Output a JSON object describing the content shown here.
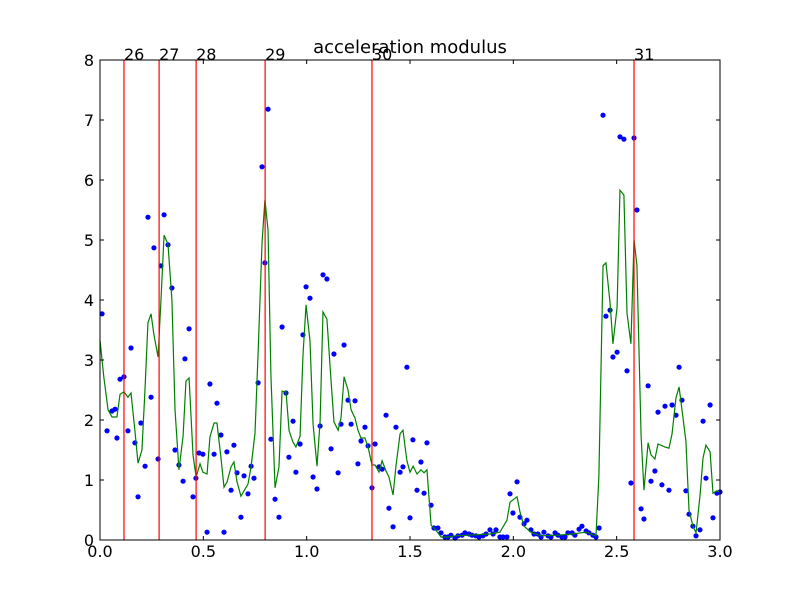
{
  "chart_data": {
    "type": "scatter",
    "title": "acceleration modulus",
    "xlim": [
      0,
      3
    ],
    "ylim": [
      0,
      8
    ],
    "xticks": [
      {
        "value": 0,
        "label": "0.0"
      },
      {
        "value": 0.5,
        "label": "0.5"
      },
      {
        "value": 1,
        "label": "1.0"
      },
      {
        "value": 1.5,
        "label": "1.5"
      },
      {
        "value": 2,
        "label": "2.0"
      },
      {
        "value": 2.5,
        "label": "2.5"
      },
      {
        "value": 3,
        "label": "3.0"
      }
    ],
    "yticks": [
      0,
      1,
      2,
      3,
      4,
      5,
      6,
      7,
      8
    ],
    "grid": false,
    "vlines": {
      "color": "#ff0000",
      "lines": [
        {
          "x": 0.116,
          "label": "26"
        },
        {
          "x": 0.286,
          "label": "27"
        },
        {
          "x": 0.465,
          "label": "28"
        },
        {
          "x": 0.799,
          "label": "29"
        },
        {
          "x": 1.316,
          "label": "30"
        },
        {
          "x": 2.584,
          "label": "31"
        }
      ]
    },
    "series": [
      {
        "style": "marker",
        "color": "#0000ff",
        "x": [
          0.01,
          0.034,
          0.058,
          0.073,
          0.082,
          0.097,
          0.116,
          0.135,
          0.15,
          0.169,
          0.184,
          0.198,
          0.218,
          0.232,
          0.247,
          0.261,
          0.281,
          0.295,
          0.31,
          0.329,
          0.348,
          0.363,
          0.382,
          0.402,
          0.411,
          0.431,
          0.45,
          0.464,
          0.479,
          0.498,
          0.518,
          0.532,
          0.552,
          0.566,
          0.585,
          0.6,
          0.614,
          0.634,
          0.648,
          0.663,
          0.682,
          0.697,
          0.716,
          0.731,
          0.745,
          0.765,
          0.784,
          0.798,
          0.813,
          0.827,
          0.847,
          0.866,
          0.881,
          0.9,
          0.914,
          0.934,
          0.948,
          0.968,
          0.982,
          0.997,
          1.016,
          1.031,
          1.05,
          1.065,
          1.079,
          1.098,
          1.118,
          1.132,
          1.152,
          1.166,
          1.181,
          1.2,
          1.215,
          1.234,
          1.248,
          1.263,
          1.282,
          1.297,
          1.316,
          1.331,
          1.35,
          1.365,
          1.384,
          1.398,
          1.418,
          1.432,
          1.452,
          1.466,
          1.485,
          1.5,
          1.514,
          1.534,
          1.553,
          1.568,
          1.582,
          1.602,
          1.616,
          1.635,
          1.65,
          1.669,
          1.684,
          1.698,
          1.718,
          1.732,
          1.752,
          1.766,
          1.786,
          1.8,
          1.819,
          1.834,
          1.853,
          1.868,
          1.887,
          1.902,
          1.916,
          1.935,
          1.95,
          1.969,
          1.984,
          1.998,
          2.018,
          2.032,
          2.052,
          2.066,
          2.085,
          2.1,
          2.119,
          2.134,
          2.148,
          2.168,
          2.182,
          2.202,
          2.216,
          2.235,
          2.25,
          2.264,
          2.284,
          2.298,
          2.318,
          2.332,
          2.352,
          2.366,
          2.385,
          2.4,
          2.415,
          2.434,
          2.448,
          2.468,
          2.482,
          2.502,
          2.516,
          2.535,
          2.55,
          2.569,
          2.584,
          2.598,
          2.618,
          2.632,
          2.652,
          2.666,
          2.685,
          2.7,
          2.719,
          2.734,
          2.753,
          2.768,
          2.787,
          2.802,
          2.816,
          2.835,
          2.85,
          2.869,
          2.884,
          2.903,
          2.918,
          2.932,
          2.952,
          2.966,
          2.985,
          3.0
        ],
        "values": [
          3.77,
          1.82,
          2.15,
          2.18,
          1.7,
          2.68,
          2.72,
          1.82,
          3.2,
          1.62,
          0.72,
          1.95,
          1.23,
          5.38,
          2.38,
          4.87,
          1.35,
          4.57,
          5.42,
          4.92,
          4.2,
          1.5,
          1.25,
          0.98,
          3.02,
          3.52,
          0.72,
          1.03,
          1.45,
          1.43,
          0.13,
          2.6,
          1.43,
          2.28,
          1.75,
          0.13,
          1.47,
          0.83,
          1.58,
          1.12,
          0.38,
          1.07,
          0.77,
          1.23,
          1.03,
          2.62,
          6.22,
          4.62,
          7.18,
          1.68,
          0.68,
          0.38,
          3.55,
          2.45,
          1.38,
          1.98,
          1.13,
          1.6,
          3.42,
          4.22,
          4.03,
          1.05,
          0.85,
          1.9,
          4.42,
          4.35,
          1.52,
          3.1,
          1.12,
          1.93,
          3.25,
          2.33,
          1.93,
          2.32,
          1.27,
          1.65,
          1.88,
          1.57,
          0.87,
          1.6,
          1.22,
          1.18,
          2.08,
          0.53,
          0.22,
          1.88,
          1.13,
          1.22,
          2.88,
          0.37,
          1.67,
          0.83,
          1.3,
          0.78,
          1.62,
          0.58,
          0.2,
          0.2,
          0.12,
          0.05,
          0.05,
          0.08,
          0.03,
          0.07,
          0.08,
          0.12,
          0.1,
          0.08,
          0.07,
          0.05,
          0.07,
          0.1,
          0.17,
          0.1,
          0.17,
          0.05,
          0.05,
          0.05,
          0.77,
          0.45,
          0.97,
          0.38,
          0.27,
          0.33,
          0.17,
          0.1,
          0.1,
          0.05,
          0.13,
          0.07,
          0.05,
          0.12,
          0.08,
          0.05,
          0.05,
          0.12,
          0.12,
          0.08,
          0.18,
          0.23,
          0.15,
          0.12,
          0.08,
          0.05,
          0.2,
          7.08,
          3.73,
          3.83,
          3.05,
          3.13,
          6.72,
          6.68,
          2.82,
          0.95,
          6.7,
          5.5,
          0.52,
          0.35,
          2.57,
          0.98,
          1.15,
          2.13,
          0.92,
          2.23,
          0.83,
          2.25,
          2.08,
          2.88,
          2.33,
          0.82,
          0.43,
          0.23,
          0.07,
          0.17,
          1.98,
          1.03,
          2.25,
          0.37,
          0.78,
          0.8
        ]
      },
      {
        "style": "line",
        "color": "#008000",
        "x": [
          0,
          0.019,
          0.039,
          0.058,
          0.082,
          0.097,
          0.116,
          0.135,
          0.15,
          0.169,
          0.184,
          0.203,
          0.218,
          0.232,
          0.247,
          0.261,
          0.281,
          0.295,
          0.31,
          0.329,
          0.348,
          0.363,
          0.382,
          0.402,
          0.416,
          0.431,
          0.45,
          0.465,
          0.484,
          0.498,
          0.518,
          0.532,
          0.552,
          0.566,
          0.585,
          0.6,
          0.615,
          0.634,
          0.648,
          0.663,
          0.682,
          0.697,
          0.716,
          0.731,
          0.75,
          0.765,
          0.784,
          0.798,
          0.813,
          0.827,
          0.847,
          0.866,
          0.881,
          0.9,
          0.915,
          0.934,
          0.948,
          0.968,
          0.982,
          0.997,
          1.016,
          1.031,
          1.05,
          1.065,
          1.079,
          1.098,
          1.118,
          1.132,
          1.152,
          1.166,
          1.181,
          1.2,
          1.215,
          1.234,
          1.248,
          1.263,
          1.282,
          1.297,
          1.316,
          1.331,
          1.35,
          1.365,
          1.384,
          1.398,
          1.418,
          1.432,
          1.452,
          1.466,
          1.485,
          1.5,
          1.515,
          1.534,
          1.553,
          1.568,
          1.582,
          1.602,
          1.616,
          1.635,
          1.65,
          1.684,
          1.718,
          1.785,
          1.887,
          1.935,
          1.969,
          1.984,
          2.018,
          2.032,
          2.052,
          2.085,
          2.134,
          2.216,
          2.284,
          2.352,
          2.4,
          2.414,
          2.434,
          2.448,
          2.468,
          2.482,
          2.502,
          2.516,
          2.535,
          2.55,
          2.569,
          2.584,
          2.598,
          2.618,
          2.632,
          2.652,
          2.666,
          2.685,
          2.7,
          2.734,
          2.753,
          2.768,
          2.787,
          2.802,
          2.816,
          2.835,
          2.85,
          2.869,
          2.884,
          2.903,
          2.918,
          2.932,
          2.952,
          2.966,
          2.985,
          3.0
        ],
        "values": [
          3.33,
          2.7,
          2.17,
          2.05,
          2.05,
          2.43,
          2.47,
          2.38,
          2.45,
          1.82,
          1.28,
          1.5,
          2.53,
          3.62,
          3.77,
          3.42,
          3.05,
          4.0,
          5.08,
          4.93,
          4.0,
          2.17,
          1.17,
          1.73,
          2.65,
          2.7,
          1.42,
          1.05,
          1.27,
          1.13,
          1.1,
          1.72,
          1.95,
          1.95,
          1.38,
          0.88,
          0.97,
          1.22,
          1.3,
          0.97,
          0.73,
          0.82,
          0.93,
          1.22,
          1.78,
          3.12,
          4.95,
          5.67,
          5.17,
          2.75,
          0.87,
          1.22,
          2.48,
          2.47,
          1.82,
          1.63,
          1.55,
          1.73,
          3.07,
          3.92,
          3.32,
          1.93,
          1.23,
          1.98,
          3.8,
          3.68,
          2.65,
          1.97,
          1.83,
          2.03,
          2.72,
          2.5,
          2.17,
          2.03,
          1.83,
          1.7,
          1.7,
          1.55,
          1.25,
          1.25,
          1.13,
          1.32,
          1.15,
          1.05,
          0.75,
          1.23,
          1.77,
          1.83,
          1.32,
          1.13,
          1.23,
          1.1,
          1.17,
          1.12,
          1.17,
          0.25,
          0.2,
          0.12,
          0.05,
          0.05,
          0.07,
          0.08,
          0.1,
          0.13,
          0.33,
          0.63,
          0.72,
          0.47,
          0.23,
          0.13,
          0.07,
          0.08,
          0.1,
          0.13,
          0.07,
          1.07,
          4.57,
          4.62,
          3.95,
          3.27,
          3.88,
          5.83,
          5.75,
          3.78,
          3.27,
          5.0,
          4.58,
          1.75,
          0.83,
          1.62,
          1.42,
          1.35,
          1.6,
          1.55,
          1.53,
          1.77,
          2.37,
          2.55,
          2.17,
          1.65,
          0.5,
          0.23,
          0.12,
          0.73,
          1.37,
          1.58,
          1.47,
          0.78,
          0.82,
          0.8
        ]
      }
    ]
  }
}
